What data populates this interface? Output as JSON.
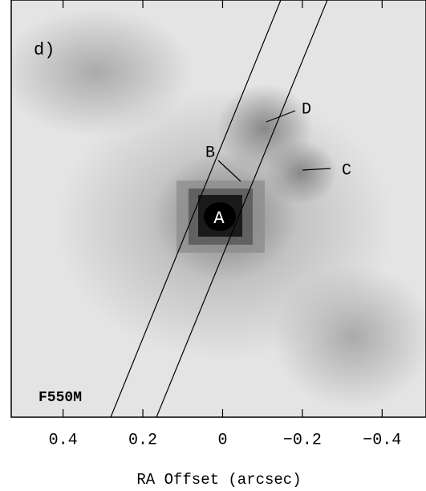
{
  "chart_data": {
    "type": "image",
    "panel_label": "d)",
    "filter_label": "F550M",
    "annotations": [
      "A",
      "B",
      "C",
      "D"
    ],
    "x_label": "RA Offset (arcsec)",
    "xlim": [
      0.53,
      -0.51
    ],
    "xticks": [
      0.4,
      0.2,
      0,
      {
        "value": -0.2,
        "label": "−0.2"
      },
      {
        "value": -0.4,
        "label": "−0.4"
      }
    ]
  }
}
